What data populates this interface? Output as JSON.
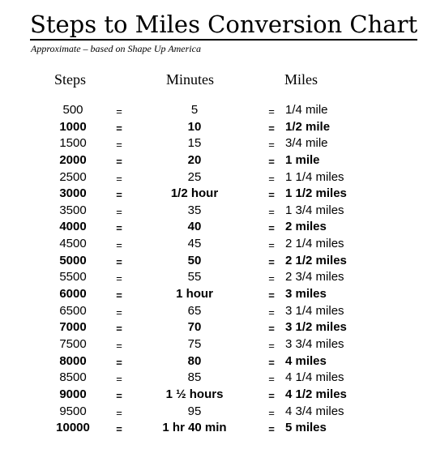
{
  "title": "Steps to Miles Conversion Chart",
  "subtitle": "Approximate – based on Shape Up America",
  "headers": {
    "steps": "Steps",
    "minutes": "Minutes",
    "miles": "Miles"
  },
  "rows": [
    {
      "steps": "500",
      "eq1": "=",
      "minutes": "5",
      "eq2": "=",
      "miles": "1/4 mile",
      "bold": false
    },
    {
      "steps": "1000",
      "eq1": "=",
      "minutes": "10",
      "eq2": "=",
      "miles": "1/2 mile",
      "bold": true
    },
    {
      "steps": "1500",
      "eq1": "=",
      "minutes": "15",
      "eq2": "=",
      "miles": "3/4 mile",
      "bold": false
    },
    {
      "steps": "2000",
      "eq1": "=",
      "minutes": "20",
      "eq2": "=",
      "miles": "1 mile",
      "bold": true
    },
    {
      "steps": "2500",
      "eq1": "=",
      "minutes": "25",
      "eq2": "=",
      "miles": "1 1/4 miles",
      "bold": false
    },
    {
      "steps": "3000",
      "eq1": "=",
      "minutes": "1/2 hour",
      "eq2": "=",
      "miles": "1 1/2 miles",
      "bold": true
    },
    {
      "steps": "3500",
      "eq1": "=",
      "minutes": "35",
      "eq2": "=",
      "miles": "1 3/4 miles",
      "bold": false
    },
    {
      "steps": "4000",
      "eq1": "=",
      "minutes": "40",
      "eq2": "=",
      "miles": "2 miles",
      "bold": true
    },
    {
      "steps": "4500",
      "eq1": "=",
      "minutes": "45",
      "eq2": "=",
      "miles": "2 1/4 miles",
      "bold": false
    },
    {
      "steps": "5000",
      "eq1": "=",
      "minutes": "50",
      "eq2": "=",
      "miles": "2 1/2 miles",
      "bold": true
    },
    {
      "steps": "5500",
      "eq1": "=",
      "minutes": "55",
      "eq2": "=",
      "miles": "2 3/4 miles",
      "bold": false
    },
    {
      "steps": "6000",
      "eq1": "=",
      "minutes": "1 hour",
      "eq2": "=",
      "miles": "3 miles",
      "bold": true
    },
    {
      "steps": "6500",
      "eq1": "=",
      "minutes": "65",
      "eq2": "=",
      "miles": "3 1/4 miles",
      "bold": false
    },
    {
      "steps": "7000",
      "eq1": "=",
      "minutes": "70",
      "eq2": "=",
      "miles": "3 1/2 miles",
      "bold": true
    },
    {
      "steps": "7500",
      "eq1": "=",
      "minutes": "75",
      "eq2": "=",
      "miles": "3 3/4 miles",
      "bold": false
    },
    {
      "steps": "8000",
      "eq1": "=",
      "minutes": "80",
      "eq2": "=",
      "miles": "4 miles",
      "bold": true
    },
    {
      "steps": "8500",
      "eq1": "=",
      "minutes": "85",
      "eq2": "=",
      "miles": "4 1/4 miles",
      "bold": false
    },
    {
      "steps": "9000",
      "eq1": "=",
      "minutes": "1 ½ hours",
      "eq2": "=",
      "miles": "4 1/2 miles",
      "bold": true
    },
    {
      "steps": "9500",
      "eq1": "=",
      "minutes": "95",
      "eq2": "=",
      "miles": "4 3/4 miles",
      "bold": false
    },
    {
      "steps": "10000",
      "eq1": "=",
      "minutes": "1 hr 40 min",
      "eq2": "=",
      "miles": "5 miles",
      "bold": true
    }
  ]
}
